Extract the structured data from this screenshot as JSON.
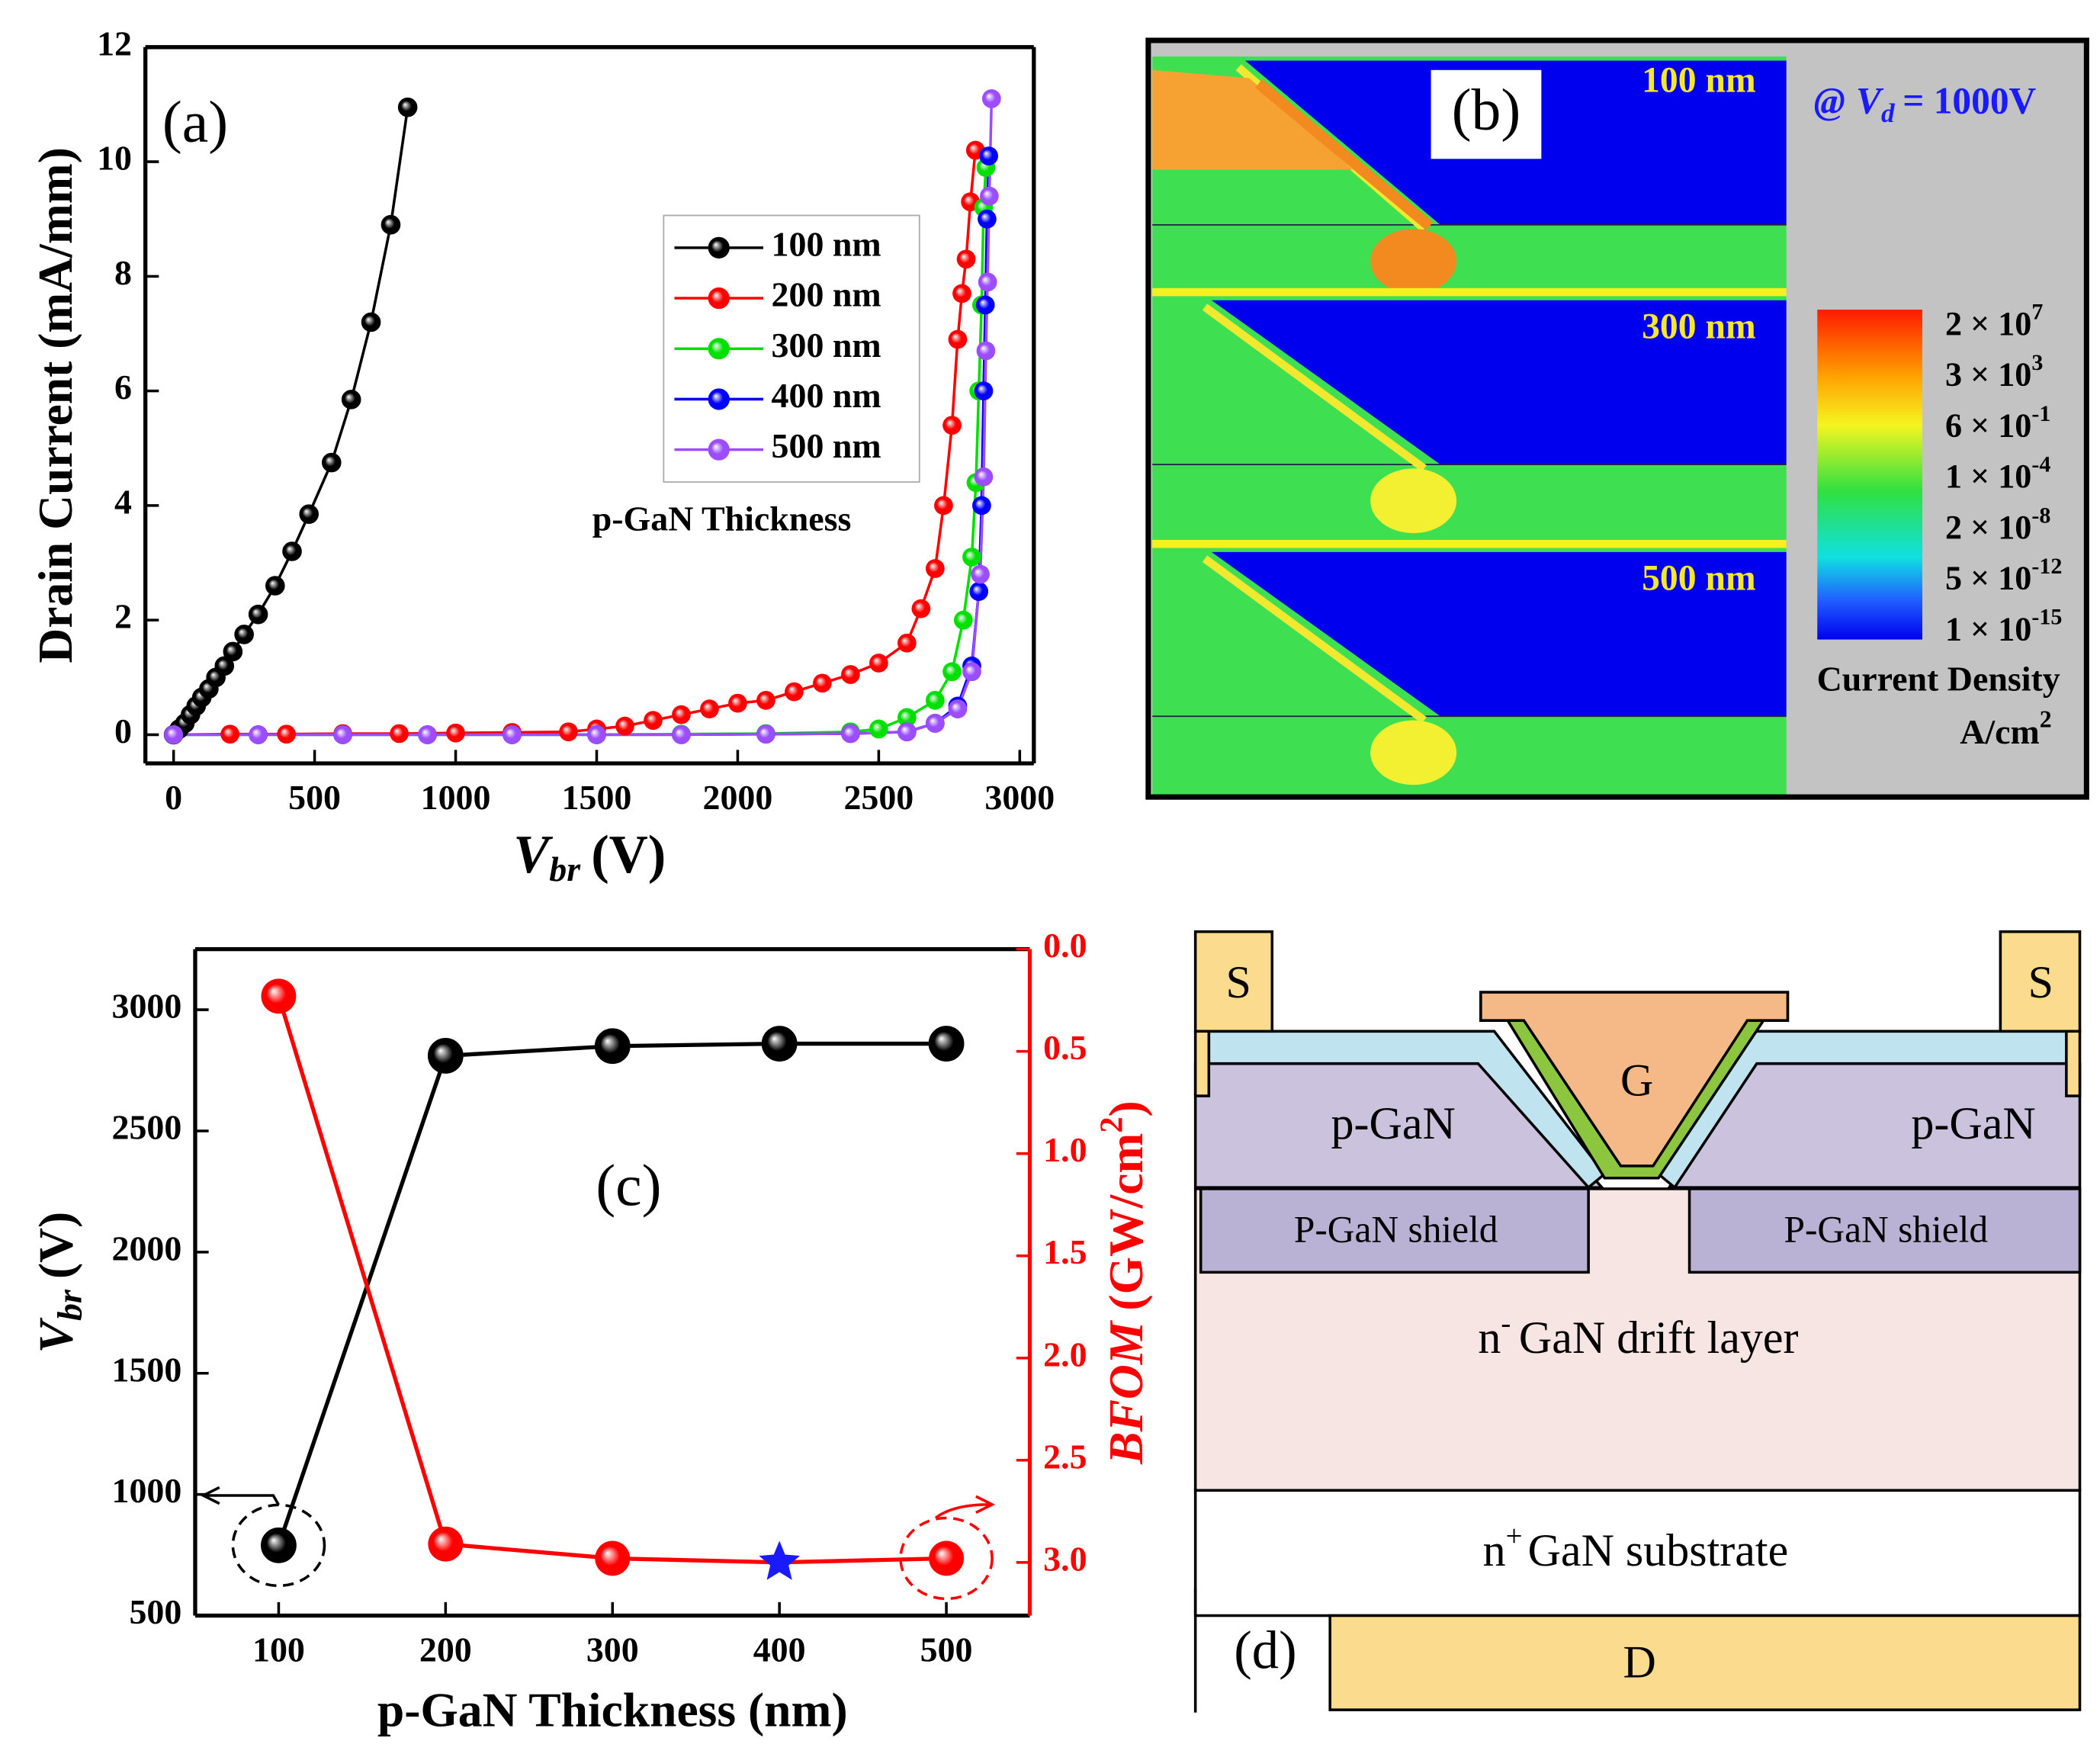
{
  "chart_data": [
    {
      "type": "line",
      "label": "(a)",
      "x_label": {
        "symbol": "V",
        "sub": "br",
        "unit": "(V)"
      },
      "y_label": "Drain Current (mA/mm)",
      "xlim": [
        -100,
        3050
      ],
      "ylim": [
        -0.5,
        12
      ],
      "xticks": [
        0,
        500,
        1000,
        1500,
        2000,
        2500,
        3000
      ],
      "yticks": [
        0,
        2,
        4,
        6,
        8,
        10,
        12
      ],
      "legend_position": "center right",
      "annotation": "p-GaN Thickness",
      "series": [
        {
          "name": "100 nm",
          "color": "#000000",
          "x": [
            0,
            20,
            40,
            60,
            80,
            100,
            125,
            150,
            180,
            210,
            250,
            300,
            360,
            420,
            480,
            560,
            630,
            700,
            770,
            830
          ],
          "values": [
            0,
            0.1,
            0.2,
            0.35,
            0.5,
            0.65,
            0.8,
            1.0,
            1.2,
            1.45,
            1.75,
            2.1,
            2.6,
            3.2,
            3.85,
            4.75,
            5.85,
            7.2,
            8.9,
            10.95
          ]
        },
        {
          "name": "200 nm",
          "color": "#ff0000",
          "x": [
            0,
            200,
            400,
            600,
            800,
            1000,
            1200,
            1400,
            1500,
            1600,
            1700,
            1800,
            1900,
            2000,
            2100,
            2200,
            2300,
            2400,
            2500,
            2600,
            2650,
            2700,
            2730,
            2760,
            2780,
            2795,
            2810,
            2825,
            2843
          ],
          "values": [
            0,
            0.01,
            0.01,
            0.02,
            0.02,
            0.03,
            0.04,
            0.05,
            0.1,
            0.15,
            0.25,
            0.35,
            0.45,
            0.55,
            0.6,
            0.75,
            0.9,
            1.05,
            1.25,
            1.6,
            2.2,
            2.9,
            4.0,
            5.4,
            6.9,
            7.7,
            8.3,
            9.3,
            10.2
          ]
        },
        {
          "name": "300 nm",
          "color": "#00e000",
          "x": [
            0,
            300,
            600,
            900,
            1200,
            1500,
            1800,
            2100,
            2400,
            2500,
            2600,
            2700,
            2760,
            2800,
            2830,
            2845,
            2855,
            2865,
            2872,
            2880
          ],
          "values": [
            0,
            0,
            0,
            0,
            0,
            0,
            0.01,
            0.02,
            0.05,
            0.1,
            0.3,
            0.6,
            1.1,
            2.0,
            3.1,
            4.4,
            6.0,
            7.5,
            9.2,
            9.9
          ]
        },
        {
          "name": "400 nm",
          "color": "#0000ff",
          "x": [
            0,
            300,
            600,
            900,
            1200,
            1500,
            1800,
            2100,
            2400,
            2600,
            2700,
            2780,
            2830,
            2855,
            2865,
            2872,
            2878,
            2884,
            2890
          ],
          "values": [
            0,
            0,
            0,
            0,
            0,
            0,
            0,
            0.01,
            0.02,
            0.05,
            0.2,
            0.5,
            1.2,
            2.5,
            4.0,
            6.0,
            7.5,
            9.0,
            10.1
          ]
        },
        {
          "name": "500 nm",
          "color": "#9b4dff",
          "x": [
            0,
            300,
            600,
            900,
            1200,
            1500,
            1800,
            2100,
            2400,
            2600,
            2700,
            2780,
            2830,
            2860,
            2872,
            2880,
            2886,
            2892,
            2900
          ],
          "values": [
            0,
            0,
            0,
            0,
            0,
            0,
            0,
            0.01,
            0.02,
            0.05,
            0.2,
            0.45,
            1.1,
            2.8,
            4.5,
            6.7,
            7.9,
            9.4,
            11.1
          ]
        }
      ]
    },
    {
      "type": "line",
      "label": "(c)",
      "x_label": "p-GaN Thickness (nm)",
      "y_label": {
        "symbol": "V",
        "sub": "br",
        "unit": "(V)"
      },
      "y2_label": {
        "symbol": "BFOM",
        "unit": "(GW/cm",
        "sup": "2",
        "close": ")"
      },
      "x": [
        100,
        200,
        300,
        400,
        500
      ],
      "xlim": [
        50,
        550
      ],
      "ylim": [
        500,
        3250
      ],
      "y2lim": [
        0,
        3.26
      ],
      "y2_inverted": true,
      "xticks": [
        100,
        200,
        300,
        400,
        500
      ],
      "yticks": [
        500,
        1000,
        1500,
        2000,
        2500,
        3000
      ],
      "y2ticks": [
        {
          "value": 0,
          "label": "0.0"
        },
        0.5,
        {
          "value": 1,
          "label": "1.0"
        },
        1.5,
        {
          "value": 2,
          "label": "2.0"
        },
        2.5,
        {
          "value": 3,
          "label": "3.0"
        }
      ],
      "series": [
        {
          "color": "#000000",
          "values": [
            790,
            2810,
            2850,
            2860,
            2860
          ]
        },
        {
          "color": "#ff0000",
          "axis": "y2",
          "values": [
            0.23,
            2.91,
            2.98,
            3.0,
            2.98
          ],
          "highlight": {
            "index": 3,
            "marker": "star",
            "color": "#1a1aff"
          }
        }
      ]
    }
  ],
  "panel_b": {
    "label": "(b)",
    "sections": [
      "100 nm",
      "300 nm",
      "500 nm"
    ],
    "condition": {
      "prefix": "@",
      "symbol": "V",
      "sub": "d",
      "suffix": "= 1000V"
    },
    "colorbar": {
      "labels": [
        {
          "mantissa": "2 × 10",
          "exponent": "7"
        },
        {
          "mantissa": "3 × 10",
          "exponent": "3"
        },
        {
          "mantissa": "6 × 10",
          "exponent": "-1"
        },
        {
          "mantissa": "1 × 10",
          "exponent": "-4"
        },
        {
          "mantissa": "2 × 10",
          "exponent": "-8"
        },
        {
          "mantissa": "5 × 10",
          "exponent": "-12"
        },
        {
          "mantissa": "1 × 10",
          "exponent": "-15"
        }
      ],
      "title": "Current Density",
      "unit": {
        "text": "A/cm",
        "sup": "2"
      }
    }
  },
  "panel_d": {
    "label": "(d)",
    "source": [
      "S",
      "S"
    ],
    "gate": "G",
    "p_gan": [
      "p-GaN",
      "p-GaN"
    ],
    "shield": [
      "P-GaN shield",
      "P-GaN shield"
    ],
    "drift": {
      "text": "n",
      "sup": "-",
      "rest": "GaN drift layer"
    },
    "substrate": {
      "text": "n",
      "sup": "+",
      "rest": "GaN substrate"
    },
    "drain": "D"
  }
}
